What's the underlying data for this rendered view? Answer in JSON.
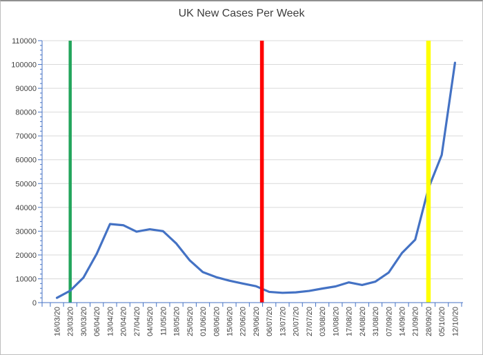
{
  "chart_data": {
    "type": "line",
    "title": "UK New Cases Per Week",
    "xlabel": "",
    "ylabel": "",
    "ylim": [
      0,
      110000
    ],
    "ytick_interval": 10000,
    "ytick_minor_interval": 2000,
    "grid": "horizontal",
    "legend": "none",
    "categories": [
      "16/03/20",
      "23/03/20",
      "30/03/20",
      "06/04/20",
      "13/04/20",
      "20/04/20",
      "27/04/20",
      "04/05/20",
      "11/05/20",
      "18/05/20",
      "25/05/20",
      "01/06/20",
      "08/06/20",
      "15/06/20",
      "22/06/20",
      "29/06/20",
      "06/07/20",
      "13/07/20",
      "20/07/20",
      "27/07/20",
      "03/08/20",
      "10/08/20",
      "17/08/20",
      "24/08/20",
      "31/08/20",
      "07/09/20",
      "14/09/20",
      "21/09/20",
      "28/09/20",
      "05/10/20",
      "12/10/20"
    ],
    "series": [
      {
        "name": "UK New Cases Per Week",
        "color": "#4472C4",
        "values": [
          2000,
          5000,
          10500,
          20500,
          33000,
          32500,
          29800,
          30800,
          30000,
          24800,
          17800,
          12800,
          10700,
          9200,
          8000,
          6900,
          4500,
          4100,
          4300,
          4900,
          5900,
          6800,
          8500,
          7400,
          8800,
          12600,
          20800,
          26400,
          48000,
          62000,
          100700
        ]
      }
    ],
    "vlines": [
      {
        "color": "#23A55C",
        "at_category": "23/03/20",
        "index": 1,
        "width": 4.5,
        "draw": "behind-series"
      },
      {
        "color": "#FF0000",
        "at_category": "",
        "index": 15.45,
        "width": 5.5,
        "draw": "front",
        "between": [
          "29/06/20",
          "06/07/20"
        ]
      },
      {
        "color": "#FFFF00",
        "at_category": "28/09/20",
        "index": 28,
        "width": 6.5,
        "draw": "front"
      }
    ],
    "colors": {
      "series": "#4472C4",
      "axis": "#4472C4",
      "gridline": "#D9D9D9",
      "tick_label": "#404040",
      "title": "#3D3D3D",
      "background": "#FFFFFF",
      "frame_border": "#BDBDBD"
    }
  }
}
